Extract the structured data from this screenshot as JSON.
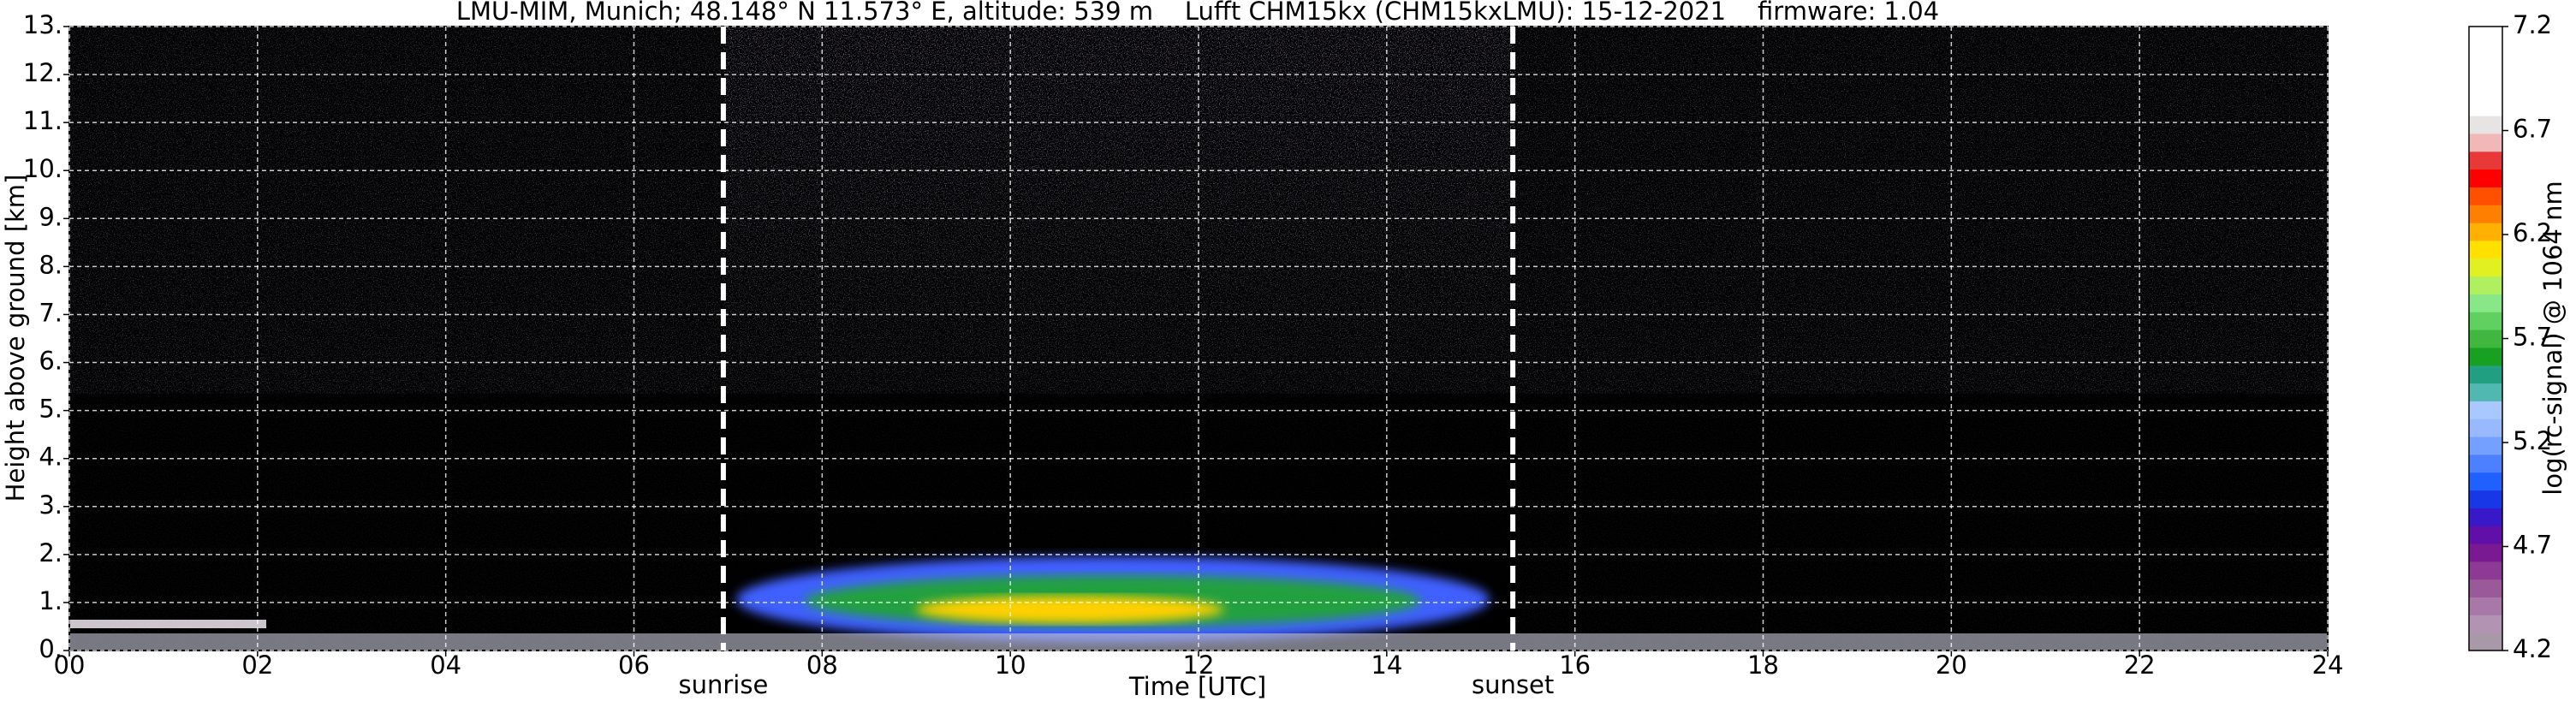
{
  "chart_data": {
    "type": "heatmap",
    "title": "LMU-MIM, Munich; 48.148° N 11.573° E, altitude: 539 m    Lufft CHM15kx (CHM15kxLMU): 15-12-2021    firmware: 1.04",
    "x_label": "Time [UTC]",
    "y_label": "Height above ground [km]",
    "xlim": [
      0,
      24
    ],
    "xticks": [
      {
        "value": 0,
        "label": "00"
      },
      {
        "value": 2,
        "label": "02"
      },
      {
        "value": 4,
        "label": "04"
      },
      {
        "value": 6,
        "label": "06"
      },
      {
        "value": 8,
        "label": "08"
      },
      10,
      12,
      14,
      16,
      18,
      20,
      22,
      24
    ],
    "ylim": [
      0,
      13
    ],
    "yticks": [
      {
        "value": 0,
        "label": "0."
      },
      {
        "value": 1,
        "label": "1."
      },
      {
        "value": 2,
        "label": "2."
      },
      {
        "value": 3,
        "label": "3."
      },
      {
        "value": 4,
        "label": "4."
      },
      {
        "value": 5,
        "label": "5."
      },
      {
        "value": 6,
        "label": "6."
      },
      {
        "value": 7,
        "label": "7."
      },
      {
        "value": 8,
        "label": "8."
      },
      {
        "value": 9,
        "label": "9."
      },
      {
        "value": 10,
        "label": "10."
      },
      {
        "value": 11,
        "label": "11."
      },
      {
        "value": 12,
        "label": "12."
      },
      {
        "value": 13,
        "label": "13."
      }
    ],
    "grid": true,
    "annotations": [
      {
        "text": "sunrise",
        "x": 6.95
      },
      {
        "text": "sunset",
        "x": 15.34
      }
    ],
    "colorbar": {
      "label": "log(rc-signal) @ 1064 nm",
      "lim": [
        4.2,
        7.2
      ],
      "ticks": [
        4.2,
        4.7,
        5.2,
        5.7,
        6.2,
        6.7,
        7.2
      ],
      "colors": [
        "#a898a8",
        "#b294b2",
        "#a878a8",
        "#9a5a9a",
        "#8c3a94",
        "#7a1a92",
        "#6010a8",
        "#3818c8",
        "#1838e8",
        "#2060ff",
        "#4c80ff",
        "#74a0ff",
        "#98b8ff",
        "#a8c8ff",
        "#50b8b0",
        "#20a080",
        "#18a020",
        "#40b840",
        "#60d060",
        "#88e888",
        "#b0f060",
        "#e0f020",
        "#ffe000",
        "#ffb000",
        "#ff8000",
        "#ff5000",
        "#ff0000",
        "#e83838",
        "#f0b8b8",
        "#e8e4e4",
        "#ffffff",
        "#ffffff",
        "#ffffff",
        "#ffffff",
        "#ffffff"
      ]
    }
  }
}
